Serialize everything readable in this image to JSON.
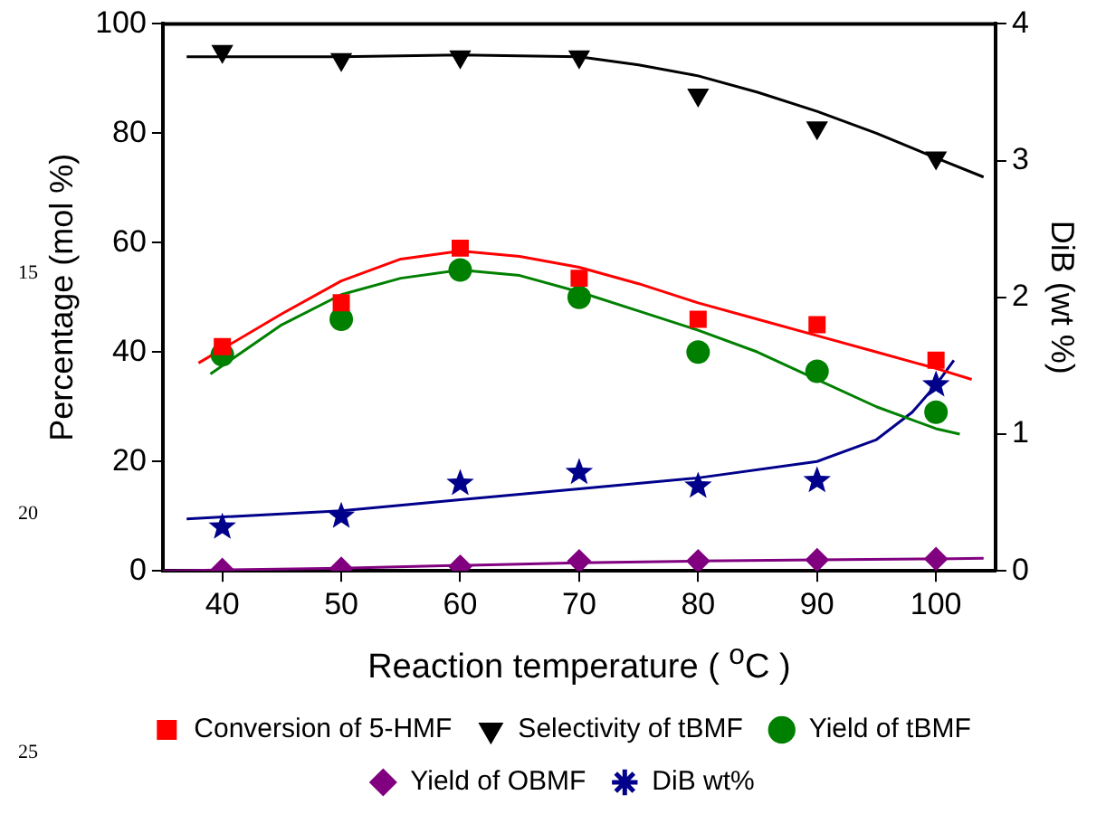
{
  "chart_data": {
    "type": "scatter",
    "xlabel": "Reaction temperature ( $^{o}$C )",
    "ylabel": "Percentage (mol %)",
    "y2label": "DiB (wt %)",
    "xlim": [
      35,
      105
    ],
    "xticks": [
      40,
      50,
      60,
      70,
      80,
      90,
      100
    ],
    "ylim": [
      0,
      100
    ],
    "yticks": [
      0,
      20,
      40,
      60,
      80,
      100
    ],
    "y2lim": [
      0,
      4
    ],
    "y2ticks": [
      0,
      1,
      2,
      3,
      4
    ],
    "legend": "bottom",
    "grid": false,
    "annotations": [
      "15",
      "20",
      "25"
    ],
    "series": [
      {
        "name": "Conversion of 5-HMF",
        "color": "#ff0000",
        "marker": "square",
        "x": [
          40,
          50,
          60,
          70,
          80,
          90,
          100
        ],
        "values": [
          41,
          49,
          59,
          53.5,
          46,
          45,
          38.5
        ]
      },
      {
        "name": "Selectivity of tBMF",
        "color": "#000000",
        "marker": "triangle",
        "x": [
          40,
          50,
          60,
          70,
          80,
          90,
          100
        ],
        "values": [
          95,
          93.5,
          94,
          94,
          87,
          81,
          75.5
        ]
      },
      {
        "name": "Yield of tBMF",
        "color": "#008000",
        "marker": "circle",
        "x": [
          40,
          50,
          60,
          70,
          80,
          90,
          100
        ],
        "values": [
          39.5,
          46,
          55,
          50,
          40,
          36.5,
          29
        ]
      },
      {
        "name": "Yield of OBMF",
        "color": "#800080",
        "marker": "diamond",
        "x": [
          40,
          50,
          60,
          70,
          80,
          90,
          100
        ],
        "values": [
          0.2,
          0.4,
          0.8,
          1.8,
          1.8,
          2,
          2.2
        ]
      },
      {
        "name": "DiB wt%",
        "color": "#00008b",
        "marker": "star",
        "axis": "y2",
        "x": [
          40,
          50,
          60,
          70,
          80,
          90,
          100
        ],
        "values": [
          0.32,
          0.4,
          0.64,
          0.72,
          0.62,
          0.66,
          1.36
        ]
      },
      {
        "type": "line",
        "color": "#ff0000",
        "marker": "none",
        "x": [
          38,
          45,
          50,
          55,
          60,
          65,
          70,
          75,
          80,
          85,
          90,
          95,
          100,
          103
        ],
        "values": [
          38,
          47,
          53,
          57,
          58.5,
          57.5,
          55.5,
          52.5,
          49,
          46,
          43,
          40,
          37,
          35
        ]
      },
      {
        "type": "line",
        "color": "#000000",
        "marker": "none",
        "x": [
          37,
          50,
          60,
          70,
          75,
          80,
          85,
          90,
          95,
          100,
          104
        ],
        "values": [
          94,
          94,
          94.3,
          94,
          92.5,
          90.5,
          87.5,
          84,
          80,
          75.5,
          72
        ]
      },
      {
        "type": "line",
        "color": "#008000",
        "marker": "none",
        "x": [
          39,
          45,
          50,
          55,
          60,
          65,
          70,
          75,
          80,
          85,
          90,
          95,
          100,
          102
        ],
        "values": [
          36,
          45,
          50.5,
          53.5,
          55,
          54,
          51,
          47.5,
          44,
          40,
          35,
          30,
          26,
          25
        ]
      },
      {
        "type": "line",
        "color": "#800080",
        "marker": "none",
        "x": [
          35,
          50,
          70,
          80,
          90,
          100,
          104
        ],
        "values": [
          0,
          0.5,
          1.5,
          1.8,
          2,
          2.2,
          2.3
        ]
      },
      {
        "type": "line",
        "color": "#00008b",
        "marker": "none",
        "axis": "y2",
        "x": [
          37,
          50,
          60,
          70,
          80,
          90,
          95,
          98,
          100,
          101.5
        ],
        "values": [
          0.38,
          0.44,
          0.52,
          0.6,
          0.68,
          0.8,
          0.96,
          1.16,
          1.36,
          1.54
        ]
      }
    ]
  }
}
